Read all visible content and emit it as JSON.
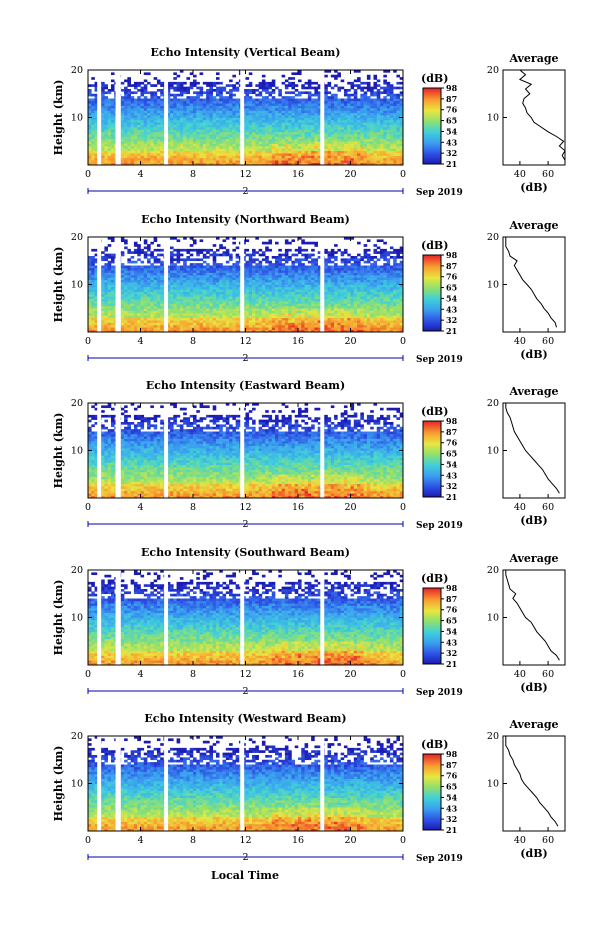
{
  "figure": {
    "xlabel": "Local Time",
    "date_label": "Sep 2019",
    "day_label": "2"
  },
  "chart_data": [
    {
      "type": "heatmap",
      "title": "Echo Intensity (Vertical Beam)",
      "ylabel": "Height (km)",
      "xlabel": "Local Time",
      "x_ticks": [
        "0",
        "4",
        "8",
        "12",
        "16",
        "20",
        "0"
      ],
      "y_ticks": [
        "10",
        "20"
      ],
      "xlim": [
        0,
        24
      ],
      "ylim": [
        0,
        20
      ],
      "colorbar_label": "(dB)",
      "colorbar_ticks": [
        "21",
        "32",
        "43",
        "54",
        "65",
        "76",
        "87",
        "98"
      ],
      "data_gaps_hours": [
        [
          0.7,
          1.0
        ],
        [
          2.1,
          2.5
        ],
        [
          5.8,
          6.1
        ],
        [
          11.6,
          11.9
        ],
        [
          17.7,
          18.0
        ]
      ],
      "avg_profile": {
        "title": "Average",
        "xlabel": "(dB)",
        "x_ticks": [
          "40",
          "60"
        ],
        "y_ticks": [
          "10",
          "20"
        ],
        "height_km": [
          1,
          2,
          3,
          4,
          5,
          6,
          7,
          8,
          9,
          10,
          11,
          12,
          13,
          14,
          15,
          16,
          17,
          18,
          19,
          20
        ],
        "db": [
          72,
          70,
          73,
          68,
          71,
          66,
          60,
          55,
          50,
          48,
          45,
          44,
          42,
          43,
          47,
          44,
          48,
          40,
          44,
          40
        ]
      }
    },
    {
      "type": "heatmap",
      "title": "Echo Intensity (Northward Beam)",
      "ylabel": "Height (km)",
      "xlabel": "Local Time",
      "x_ticks": [
        "0",
        "4",
        "8",
        "12",
        "16",
        "20",
        "0"
      ],
      "y_ticks": [
        "10",
        "20"
      ],
      "xlim": [
        0,
        24
      ],
      "ylim": [
        0,
        20
      ],
      "colorbar_label": "(dB)",
      "colorbar_ticks": [
        "21",
        "32",
        "43",
        "54",
        "65",
        "76",
        "87",
        "98"
      ],
      "data_gaps_hours": [
        [
          0.7,
          1.0
        ],
        [
          2.1,
          2.5
        ],
        [
          5.8,
          6.1
        ],
        [
          11.6,
          11.9
        ],
        [
          17.7,
          18.0
        ]
      ],
      "avg_profile": {
        "title": "Average",
        "xlabel": "(dB)",
        "x_ticks": [
          "40",
          "60"
        ],
        "y_ticks": [
          "10",
          "20"
        ],
        "height_km": [
          1,
          2,
          3,
          4,
          5,
          6,
          7,
          8,
          9,
          10,
          11,
          12,
          13,
          14,
          15,
          16,
          17,
          18,
          19,
          20
        ],
        "db": [
          66,
          65,
          62,
          60,
          57,
          55,
          52,
          50,
          48,
          45,
          42,
          40,
          38,
          36,
          38,
          33,
          32,
          30,
          30,
          30
        ]
      }
    },
    {
      "type": "heatmap",
      "title": "Echo Intensity (Eastward Beam)",
      "ylabel": "Height (km)",
      "xlabel": "Local Time",
      "x_ticks": [
        "0",
        "4",
        "8",
        "12",
        "16",
        "20",
        "0"
      ],
      "y_ticks": [
        "10",
        "20"
      ],
      "xlim": [
        0,
        24
      ],
      "ylim": [
        0,
        20
      ],
      "colorbar_label": "(dB)",
      "colorbar_ticks": [
        "21",
        "32",
        "43",
        "54",
        "65",
        "76",
        "87",
        "98"
      ],
      "data_gaps_hours": [
        [
          0.7,
          1.0
        ],
        [
          2.1,
          2.5
        ],
        [
          5.8,
          6.1
        ],
        [
          11.6,
          11.9
        ],
        [
          17.7,
          18.0
        ]
      ],
      "avg_profile": {
        "title": "Average",
        "xlabel": "(dB)",
        "x_ticks": [
          "40",
          "60"
        ],
        "y_ticks": [
          "10",
          "20"
        ],
        "height_km": [
          1,
          2,
          3,
          4,
          5,
          6,
          7,
          8,
          9,
          10,
          11,
          12,
          13,
          14,
          15,
          16,
          17,
          18,
          19,
          20
        ],
        "db": [
          68,
          66,
          63,
          60,
          58,
          56,
          53,
          50,
          47,
          44,
          42,
          40,
          38,
          36,
          35,
          34,
          33,
          31,
          30,
          30
        ]
      }
    },
    {
      "type": "heatmap",
      "title": "Echo Intensity (Southward Beam)",
      "ylabel": "Height (km)",
      "xlabel": "Local Time",
      "x_ticks": [
        "0",
        "4",
        "8",
        "12",
        "16",
        "20",
        "0"
      ],
      "y_ticks": [
        "10",
        "20"
      ],
      "xlim": [
        0,
        24
      ],
      "ylim": [
        0,
        20
      ],
      "colorbar_label": "(dB)",
      "colorbar_ticks": [
        "21",
        "32",
        "43",
        "54",
        "65",
        "76",
        "87",
        "98"
      ],
      "data_gaps_hours": [
        [
          0.7,
          1.0
        ],
        [
          2.1,
          2.5
        ],
        [
          5.8,
          6.1
        ],
        [
          11.6,
          11.9
        ],
        [
          17.7,
          18.0
        ]
      ],
      "avg_profile": {
        "title": "Average",
        "xlabel": "(dB)",
        "x_ticks": [
          "40",
          "60"
        ],
        "y_ticks": [
          "10",
          "20"
        ],
        "height_km": [
          1,
          2,
          3,
          4,
          5,
          6,
          7,
          8,
          9,
          10,
          11,
          12,
          13,
          14,
          15,
          16,
          17,
          18,
          19,
          20
        ],
        "db": [
          68,
          66,
          62,
          60,
          58,
          55,
          52,
          50,
          48,
          44,
          42,
          40,
          38,
          35,
          37,
          33,
          32,
          31,
          30,
          30
        ]
      }
    },
    {
      "type": "heatmap",
      "title": "Echo Intensity (Westward Beam)",
      "ylabel": "Height (km)",
      "xlabel": "Local Time",
      "x_ticks": [
        "0",
        "4",
        "8",
        "12",
        "16",
        "20",
        "0"
      ],
      "y_ticks": [
        "10",
        "20"
      ],
      "xlim": [
        0,
        24
      ],
      "ylim": [
        0,
        20
      ],
      "colorbar_label": "(dB)",
      "colorbar_ticks": [
        "21",
        "32",
        "43",
        "54",
        "65",
        "76",
        "87",
        "98"
      ],
      "data_gaps_hours": [
        [
          0.7,
          1.0
        ],
        [
          2.1,
          2.5
        ],
        [
          5.8,
          6.1
        ],
        [
          11.6,
          11.9
        ],
        [
          17.7,
          18.0
        ]
      ],
      "avg_profile": {
        "title": "Average",
        "xlabel": "(dB)",
        "x_ticks": [
          "40",
          "60"
        ],
        "y_ticks": [
          "10",
          "20"
        ],
        "height_km": [
          1,
          2,
          3,
          4,
          5,
          6,
          7,
          8,
          9,
          10,
          11,
          12,
          13,
          14,
          15,
          16,
          17,
          18,
          19,
          20
        ],
        "db": [
          67,
          65,
          62,
          60,
          57,
          54,
          52,
          49,
          46,
          43,
          41,
          40,
          38,
          36,
          35,
          33,
          32,
          30,
          30,
          30
        ]
      }
    }
  ]
}
